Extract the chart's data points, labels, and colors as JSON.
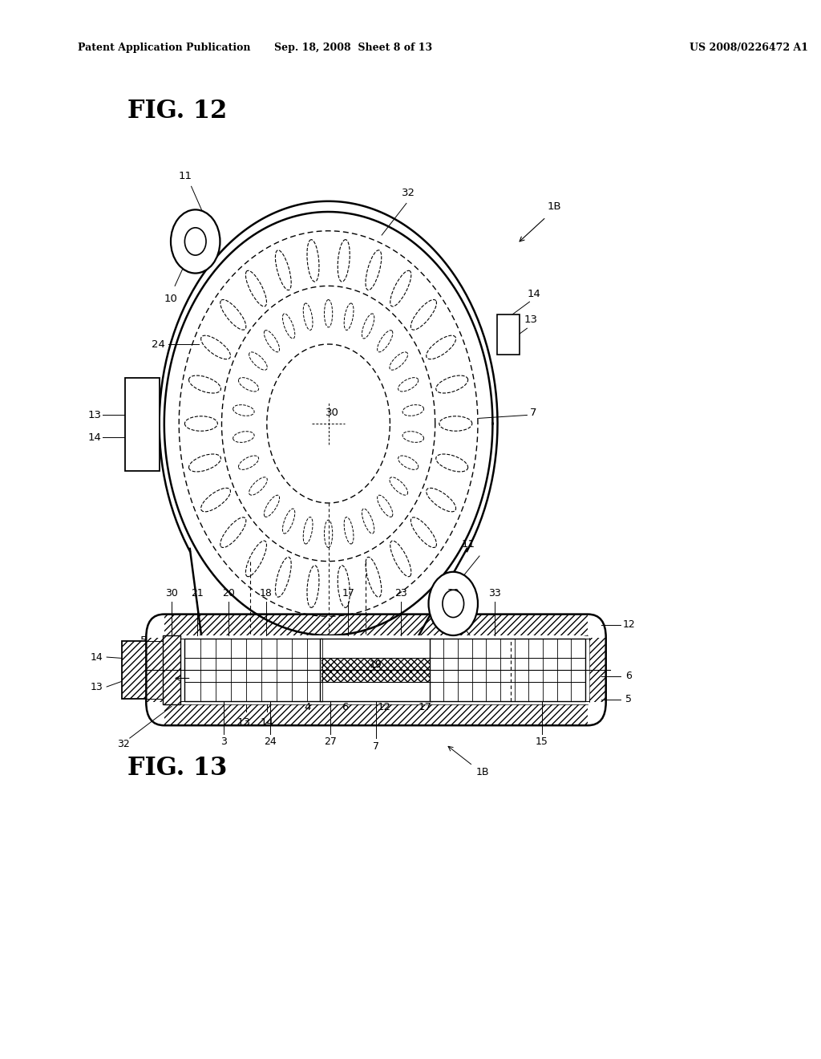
{
  "bg_color": "#ffffff",
  "line_color": "#000000",
  "header_left": "Patent Application Publication",
  "header_center": "Sep. 18, 2008  Sheet 8 of 13",
  "header_right": "US 2008/0226472 A1",
  "fig12_title": "FIG. 12",
  "fig13_title": "FIG. 13"
}
